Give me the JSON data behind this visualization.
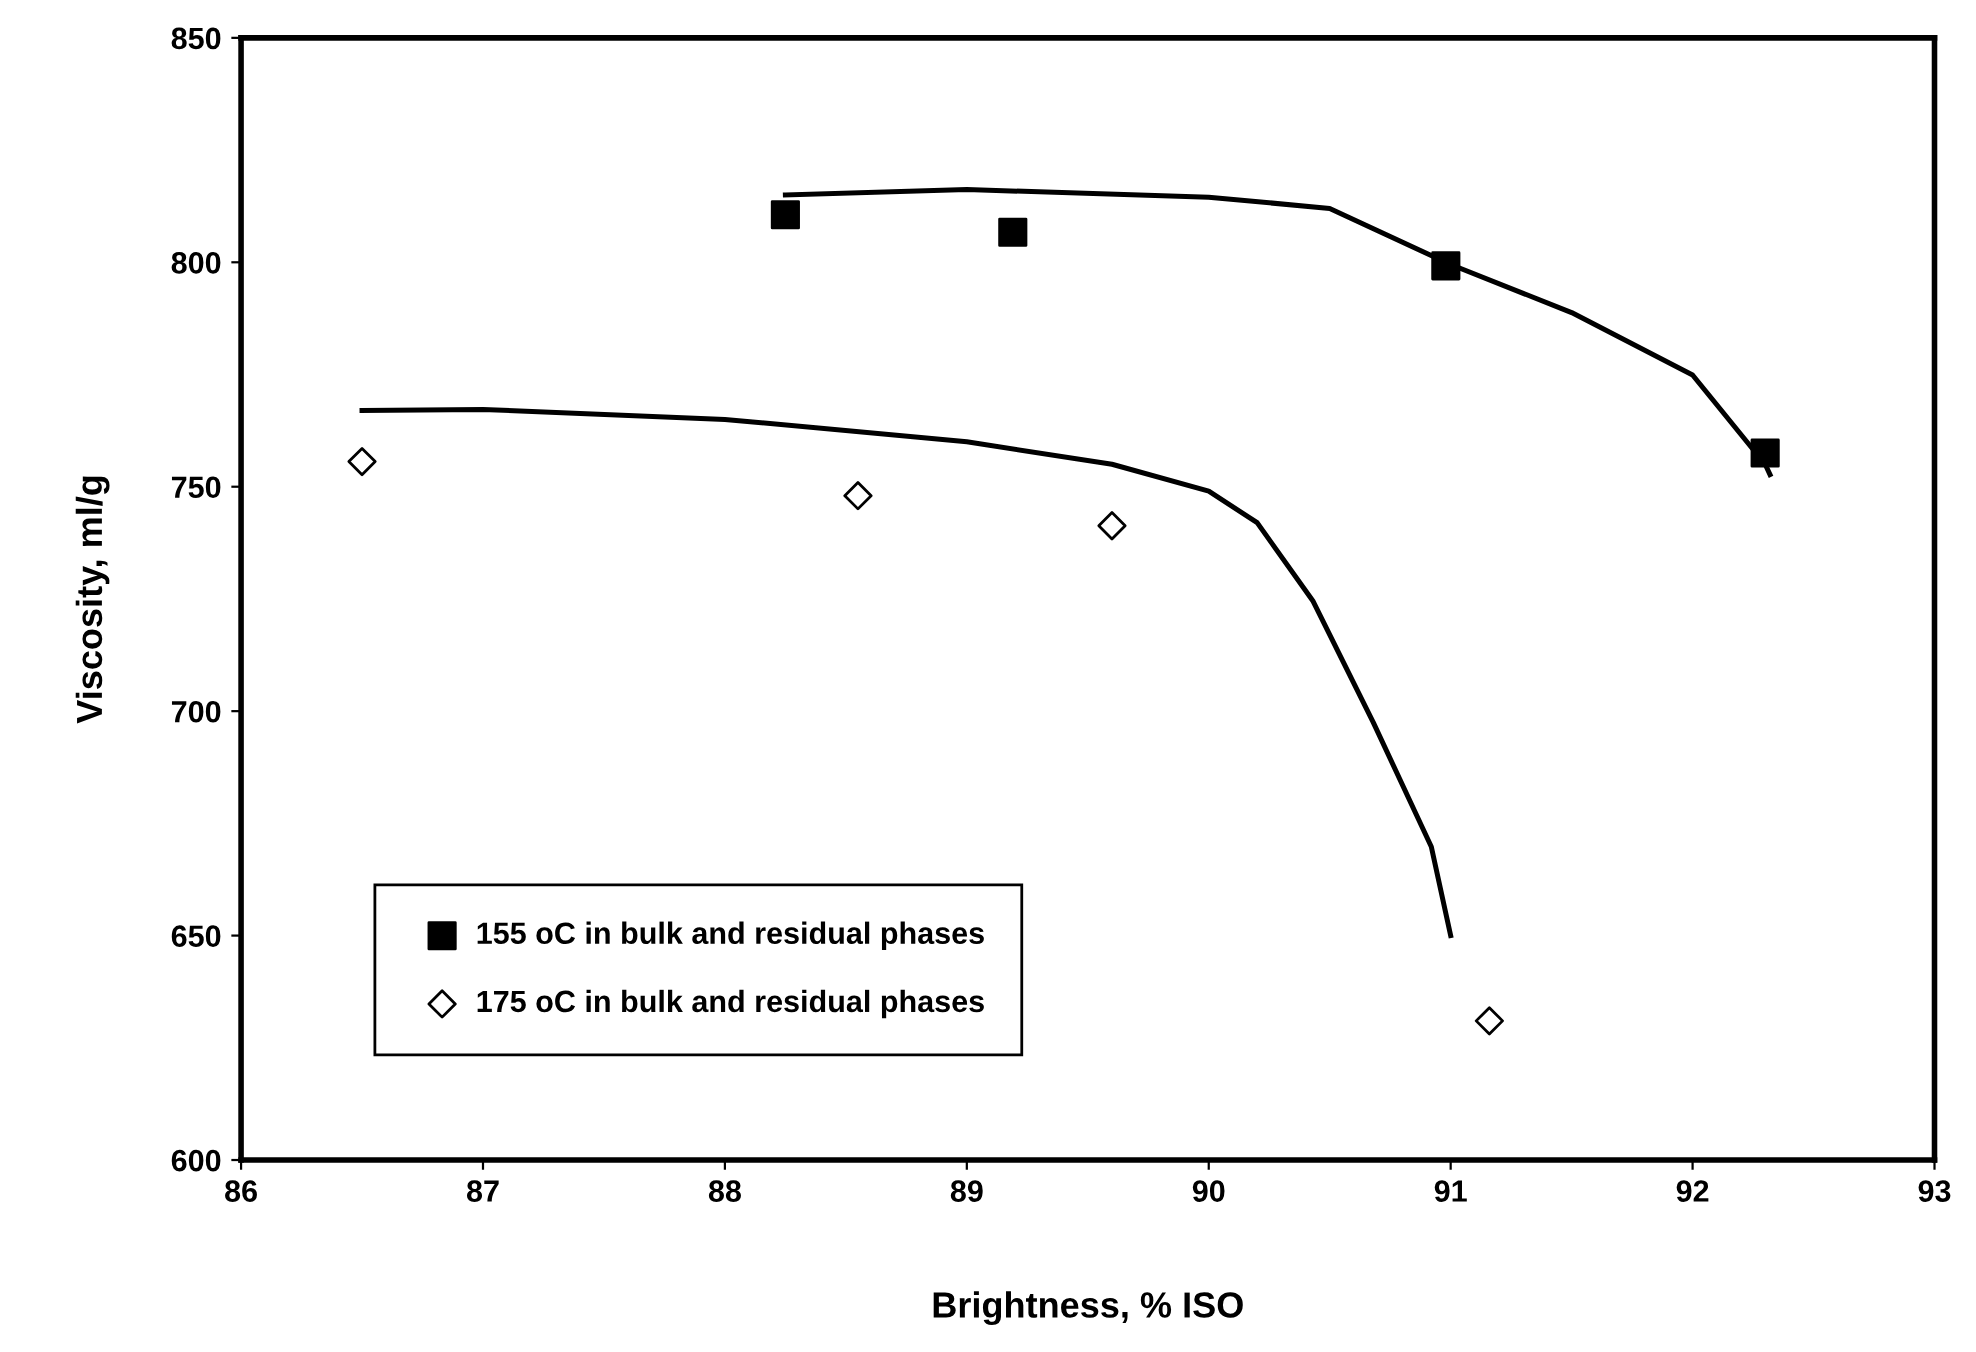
{
  "chart_data": {
    "type": "scatter",
    "xlabel": "Brightness, % ISO",
    "ylabel": "Viscosity, ml/g",
    "xlim": [
      86,
      93
    ],
    "xticks": [
      86,
      87,
      88,
      89,
      90,
      91,
      92,
      93
    ],
    "ylim": [
      600,
      850
    ],
    "yticks": [
      600,
      650,
      700,
      750,
      800,
      850
    ],
    "grid": false,
    "legend": "lower left",
    "series": [
      {
        "name": "155 oC in bulk and residual phases",
        "marker": "square",
        "color": "#000000",
        "x": [
          88.25,
          89.19,
          90.98,
          92.3
        ],
        "values": [
          810.6,
          806.7,
          799.2,
          757.5
        ]
      },
      {
        "name": "175 oC in bulk and residual phases",
        "marker": "diamond",
        "color": "#ffffff",
        "x": [
          86.5,
          88.55,
          89.6,
          91.16
        ],
        "values": [
          755.6,
          748.0,
          741.3,
          631
        ]
      },
      {
        "type": "line",
        "marker": "none",
        "color": "#000000",
        "x": [
          88.25,
          89.0,
          90.0,
          90.5,
          91.0,
          91.5,
          92.0,
          92.3,
          92.32
        ],
        "values": [
          815,
          816.2,
          814.5,
          812,
          799.5,
          788.8,
          774.9,
          755,
          752.7
        ]
      },
      {
        "type": "line",
        "marker": "none",
        "color": "#000000",
        "x": [
          86.5,
          87,
          88,
          89,
          89.6,
          90,
          90.2,
          90.43,
          90.68,
          90.92,
          91.0
        ],
        "values": [
          767,
          767.2,
          765,
          760,
          755,
          749,
          742,
          724.6,
          697.5,
          669.8,
          650
        ]
      }
    ]
  }
}
